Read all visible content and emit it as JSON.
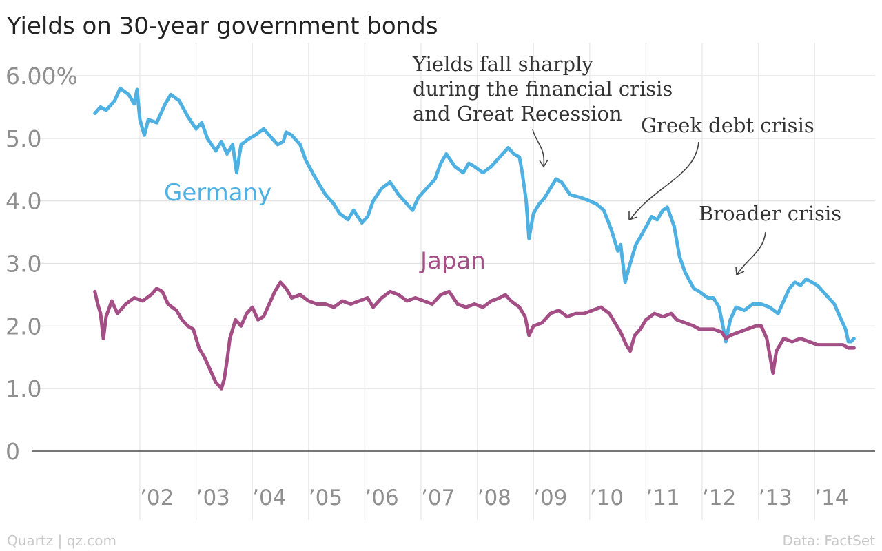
{
  "title": "Yields on 30-year government bonds",
  "footer": {
    "source_left": "Quartz | qz.com",
    "source_right": "Data: FactSet"
  },
  "colors": {
    "germany": "#4fb0e2",
    "japan": "#a44e86",
    "grid": "#e4e4e4",
    "tick": "#8f8f8f"
  },
  "chart_data": {
    "type": "line",
    "title": "Yields on 30-year government bonds",
    "xlabel": "",
    "ylabel": "",
    "xlim": [
      2001.0,
      2014.85
    ],
    "ylim": [
      0,
      6
    ],
    "y_ticks": [
      0,
      1,
      2,
      3,
      4,
      5,
      6
    ],
    "y_tick_labels": [
      "0",
      "1.0",
      "2.0",
      "3.0",
      "4.0",
      "5.0",
      "6.00%"
    ],
    "x_ticks": [
      2002,
      2003,
      2004,
      2005,
      2006,
      2007,
      2008,
      2009,
      2010,
      2011,
      2012,
      2013,
      2014
    ],
    "x_tick_labels": [
      "’02",
      "’03",
      "’04",
      "’05",
      "’06",
      "’07",
      "’08",
      "’09",
      "’10",
      "’11",
      "’12",
      "’13",
      "’14"
    ],
    "grid": true,
    "series": [
      {
        "name": "Germany",
        "color": "#4fb0e2",
        "points": [
          [
            2001.2,
            5.4
          ],
          [
            2001.3,
            5.5
          ],
          [
            2001.4,
            5.45
          ],
          [
            2001.55,
            5.6
          ],
          [
            2001.65,
            5.8
          ],
          [
            2001.8,
            5.7
          ],
          [
            2001.9,
            5.55
          ],
          [
            2001.95,
            5.78
          ],
          [
            2002.0,
            5.3
          ],
          [
            2002.08,
            5.05
          ],
          [
            2002.15,
            5.3
          ],
          [
            2002.3,
            5.25
          ],
          [
            2002.45,
            5.55
          ],
          [
            2002.55,
            5.7
          ],
          [
            2002.7,
            5.6
          ],
          [
            2002.85,
            5.35
          ],
          [
            2003.0,
            5.15
          ],
          [
            2003.1,
            5.25
          ],
          [
            2003.2,
            5.0
          ],
          [
            2003.35,
            4.8
          ],
          [
            2003.45,
            4.95
          ],
          [
            2003.55,
            4.75
          ],
          [
            2003.65,
            4.9
          ],
          [
            2003.72,
            4.45
          ],
          [
            2003.8,
            4.9
          ],
          [
            2003.95,
            5.0
          ],
          [
            2004.05,
            5.05
          ],
          [
            2004.2,
            5.15
          ],
          [
            2004.3,
            5.05
          ],
          [
            2004.45,
            4.9
          ],
          [
            2004.55,
            4.95
          ],
          [
            2004.6,
            5.1
          ],
          [
            2004.7,
            5.05
          ],
          [
            2004.85,
            4.9
          ],
          [
            2004.95,
            4.65
          ],
          [
            2005.1,
            4.4
          ],
          [
            2005.2,
            4.25
          ],
          [
            2005.3,
            4.1
          ],
          [
            2005.45,
            3.95
          ],
          [
            2005.55,
            3.8
          ],
          [
            2005.7,
            3.7
          ],
          [
            2005.8,
            3.85
          ],
          [
            2005.95,
            3.65
          ],
          [
            2006.05,
            3.75
          ],
          [
            2006.15,
            4.0
          ],
          [
            2006.3,
            4.2
          ],
          [
            2006.45,
            4.3
          ],
          [
            2006.6,
            4.1
          ],
          [
            2006.75,
            3.95
          ],
          [
            2006.85,
            3.85
          ],
          [
            2006.95,
            4.05
          ],
          [
            2007.1,
            4.2
          ],
          [
            2007.25,
            4.35
          ],
          [
            2007.35,
            4.6
          ],
          [
            2007.45,
            4.75
          ],
          [
            2007.6,
            4.55
          ],
          [
            2007.75,
            4.45
          ],
          [
            2007.85,
            4.6
          ],
          [
            2007.95,
            4.55
          ],
          [
            2008.1,
            4.45
          ],
          [
            2008.25,
            4.55
          ],
          [
            2008.4,
            4.7
          ],
          [
            2008.55,
            4.85
          ],
          [
            2008.65,
            4.75
          ],
          [
            2008.75,
            4.7
          ],
          [
            2008.8,
            4.45
          ],
          [
            2008.87,
            4.0
          ],
          [
            2008.92,
            3.4
          ],
          [
            2009.0,
            3.8
          ],
          [
            2009.1,
            3.95
          ],
          [
            2009.2,
            4.05
          ],
          [
            2009.3,
            4.2
          ],
          [
            2009.4,
            4.35
          ],
          [
            2009.5,
            4.3
          ],
          [
            2009.65,
            4.1
          ],
          [
            2009.85,
            4.05
          ],
          [
            2010.0,
            4.0
          ],
          [
            2010.12,
            3.95
          ],
          [
            2010.25,
            3.85
          ],
          [
            2010.38,
            3.55
          ],
          [
            2010.5,
            3.2
          ],
          [
            2010.55,
            3.3
          ],
          [
            2010.63,
            2.7
          ],
          [
            2010.72,
            3.0
          ],
          [
            2010.82,
            3.3
          ],
          [
            2010.95,
            3.5
          ],
          [
            2011.1,
            3.75
          ],
          [
            2011.2,
            3.7
          ],
          [
            2011.3,
            3.85
          ],
          [
            2011.38,
            3.9
          ],
          [
            2011.5,
            3.6
          ],
          [
            2011.6,
            3.1
          ],
          [
            2011.7,
            2.85
          ],
          [
            2011.85,
            2.6
          ],
          [
            2011.95,
            2.55
          ],
          [
            2012.1,
            2.45
          ],
          [
            2012.2,
            2.45
          ],
          [
            2012.3,
            2.3
          ],
          [
            2012.38,
            1.95
          ],
          [
            2012.42,
            1.75
          ],
          [
            2012.5,
            2.1
          ],
          [
            2012.6,
            2.3
          ],
          [
            2012.75,
            2.25
          ],
          [
            2012.9,
            2.35
          ],
          [
            2013.05,
            2.35
          ],
          [
            2013.2,
            2.3
          ],
          [
            2013.35,
            2.2
          ],
          [
            2013.45,
            2.4
          ],
          [
            2013.55,
            2.6
          ],
          [
            2013.65,
            2.7
          ],
          [
            2013.75,
            2.65
          ],
          [
            2013.85,
            2.75
          ],
          [
            2013.95,
            2.7
          ],
          [
            2014.05,
            2.65
          ],
          [
            2014.2,
            2.5
          ],
          [
            2014.35,
            2.35
          ],
          [
            2014.45,
            2.15
          ],
          [
            2014.55,
            1.95
          ],
          [
            2014.6,
            1.75
          ],
          [
            2014.65,
            1.75
          ],
          [
            2014.7,
            1.8
          ]
        ]
      },
      {
        "name": "Japan",
        "color": "#a44e86",
        "points": [
          [
            2001.2,
            2.55
          ],
          [
            2001.25,
            2.35
          ],
          [
            2001.3,
            2.2
          ],
          [
            2001.35,
            1.8
          ],
          [
            2001.4,
            2.15
          ],
          [
            2001.5,
            2.4
          ],
          [
            2001.6,
            2.2
          ],
          [
            2001.75,
            2.35
          ],
          [
            2001.9,
            2.45
          ],
          [
            2002.05,
            2.4
          ],
          [
            2002.2,
            2.5
          ],
          [
            2002.3,
            2.6
          ],
          [
            2002.4,
            2.55
          ],
          [
            2002.5,
            2.35
          ],
          [
            2002.65,
            2.25
          ],
          [
            2002.75,
            2.1
          ],
          [
            2002.85,
            2.0
          ],
          [
            2002.95,
            1.95
          ],
          [
            2003.05,
            1.65
          ],
          [
            2003.15,
            1.5
          ],
          [
            2003.25,
            1.3
          ],
          [
            2003.35,
            1.1
          ],
          [
            2003.45,
            1.0
          ],
          [
            2003.5,
            1.15
          ],
          [
            2003.55,
            1.45
          ],
          [
            2003.6,
            1.8
          ],
          [
            2003.7,
            2.1
          ],
          [
            2003.8,
            2.0
          ],
          [
            2003.9,
            2.2
          ],
          [
            2004.0,
            2.3
          ],
          [
            2004.1,
            2.1
          ],
          [
            2004.2,
            2.15
          ],
          [
            2004.3,
            2.35
          ],
          [
            2004.4,
            2.55
          ],
          [
            2004.5,
            2.7
          ],
          [
            2004.6,
            2.6
          ],
          [
            2004.7,
            2.45
          ],
          [
            2004.85,
            2.5
          ],
          [
            2005.0,
            2.4
          ],
          [
            2005.15,
            2.35
          ],
          [
            2005.3,
            2.35
          ],
          [
            2005.45,
            2.3
          ],
          [
            2005.6,
            2.4
          ],
          [
            2005.75,
            2.35
          ],
          [
            2005.9,
            2.4
          ],
          [
            2006.05,
            2.45
          ],
          [
            2006.15,
            2.3
          ],
          [
            2006.3,
            2.45
          ],
          [
            2006.45,
            2.55
          ],
          [
            2006.6,
            2.5
          ],
          [
            2006.75,
            2.4
          ],
          [
            2006.9,
            2.45
          ],
          [
            2007.05,
            2.4
          ],
          [
            2007.2,
            2.35
          ],
          [
            2007.35,
            2.5
          ],
          [
            2007.5,
            2.55
          ],
          [
            2007.65,
            2.35
          ],
          [
            2007.8,
            2.3
          ],
          [
            2007.95,
            2.35
          ],
          [
            2008.1,
            2.3
          ],
          [
            2008.25,
            2.4
          ],
          [
            2008.4,
            2.45
          ],
          [
            2008.5,
            2.5
          ],
          [
            2008.6,
            2.4
          ],
          [
            2008.75,
            2.3
          ],
          [
            2008.85,
            2.15
          ],
          [
            2008.92,
            1.85
          ],
          [
            2009.0,
            2.0
          ],
          [
            2009.15,
            2.05
          ],
          [
            2009.3,
            2.2
          ],
          [
            2009.45,
            2.25
          ],
          [
            2009.6,
            2.15
          ],
          [
            2009.75,
            2.2
          ],
          [
            2009.9,
            2.2
          ],
          [
            2010.05,
            2.25
          ],
          [
            2010.2,
            2.3
          ],
          [
            2010.35,
            2.2
          ],
          [
            2010.45,
            2.05
          ],
          [
            2010.55,
            1.9
          ],
          [
            2010.65,
            1.7
          ],
          [
            2010.72,
            1.6
          ],
          [
            2010.8,
            1.85
          ],
          [
            2010.9,
            1.95
          ],
          [
            2011.0,
            2.1
          ],
          [
            2011.15,
            2.2
          ],
          [
            2011.3,
            2.15
          ],
          [
            2011.45,
            2.2
          ],
          [
            2011.55,
            2.1
          ],
          [
            2011.7,
            2.05
          ],
          [
            2011.85,
            2.0
          ],
          [
            2011.95,
            1.95
          ],
          [
            2012.05,
            1.95
          ],
          [
            2012.2,
            1.95
          ],
          [
            2012.35,
            1.9
          ],
          [
            2012.42,
            1.8
          ],
          [
            2012.5,
            1.85
          ],
          [
            2012.65,
            1.9
          ],
          [
            2012.8,
            1.95
          ],
          [
            2012.95,
            2.0
          ],
          [
            2013.05,
            2.0
          ],
          [
            2013.15,
            1.8
          ],
          [
            2013.2,
            1.55
          ],
          [
            2013.26,
            1.25
          ],
          [
            2013.32,
            1.6
          ],
          [
            2013.45,
            1.8
          ],
          [
            2013.6,
            1.75
          ],
          [
            2013.75,
            1.8
          ],
          [
            2013.9,
            1.75
          ],
          [
            2014.05,
            1.7
          ],
          [
            2014.2,
            1.7
          ],
          [
            2014.35,
            1.7
          ],
          [
            2014.5,
            1.7
          ],
          [
            2014.6,
            1.65
          ],
          [
            2014.7,
            1.65
          ]
        ]
      }
    ],
    "annotations": [
      {
        "text": [
          "Yields fall sharply",
          "during the financial crisis",
          "and Great Recession"
        ]
      },
      {
        "text": [
          "Greek debt crisis"
        ]
      },
      {
        "text": [
          "Broader crisis"
        ]
      }
    ]
  }
}
